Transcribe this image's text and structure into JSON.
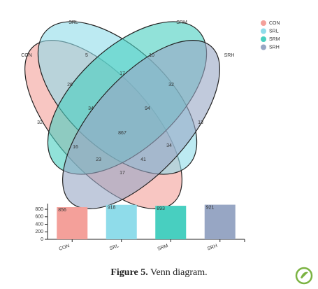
{
  "chart_data": [
    {
      "type": "venn",
      "sets": [
        {
          "name": "CON",
          "color": "#f4a09a"
        },
        {
          "name": "SRL",
          "color": "#8fdcea"
        },
        {
          "name": "SRM",
          "color": "#48cfc0"
        },
        {
          "name": "SRH",
          "color": "#97a6c4"
        }
      ],
      "values": [
        32,
        5,
        10,
        13,
        26,
        17,
        32,
        34,
        94,
        16,
        867,
        34,
        23,
        41,
        17
      ]
    },
    {
      "type": "bar",
      "categories": [
        "CON",
        "SRL",
        "SRM",
        "SRH"
      ],
      "values": [
        856,
        918,
        893,
        921
      ],
      "colors": [
        "#f4a09a",
        "#8fdcea",
        "#48cfc0",
        "#97a6c4"
      ],
      "ylim": [
        0,
        950
      ],
      "yticks": [
        0,
        200,
        400,
        600,
        800
      ]
    }
  ],
  "caption": {
    "label": "Figure 5.",
    "text": "Venn diagram."
  }
}
